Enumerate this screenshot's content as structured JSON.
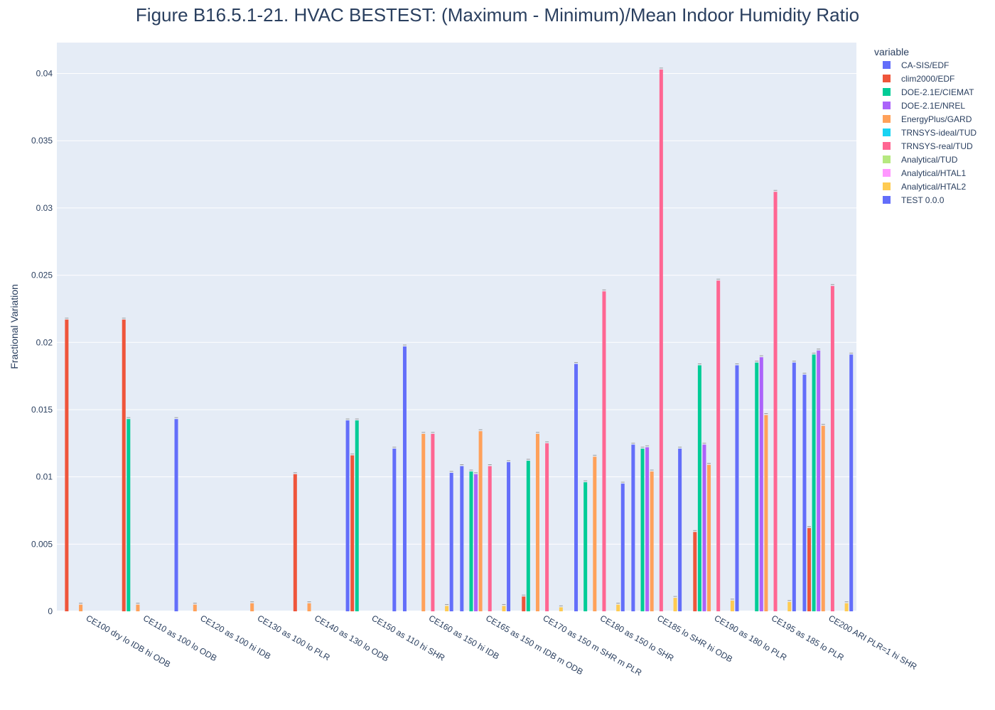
{
  "chart_data": {
    "type": "bar",
    "title": "Figure B16.5.1-21. HVAC BESTEST: (Maximum - Minimum)/Mean Indoor Humidity Ratio",
    "xlabel": "",
    "ylabel": "Fractional Variation",
    "ylim": [
      0,
      0.0423
    ],
    "yticks": [
      0,
      0.005,
      0.01,
      0.015,
      0.02,
      0.025,
      0.03,
      0.035,
      0.04
    ],
    "ytick_labels": [
      "0",
      "0.005",
      "0.01",
      "0.015",
      "0.02",
      "0.025",
      "0.03",
      "0.035",
      "0.04"
    ],
    "grid": true,
    "legend_title": "variable",
    "legend_position": "top-right",
    "categories": [
      "CE100 dry lo IDB hi ODB",
      "CE110 as 100 lo ODB",
      "CE120 as 100 hi IDB",
      "CE130 as 100 lo PLR",
      "CE140 as 130 lo ODB",
      "CE150 as 110 hi SHR",
      "CE160 as 150 hi IDB",
      "CE165 as 150 m IDB m ODB",
      "CE170 as 150 m SHR m PLR",
      "CE180 as 150 lo SHR",
      "CE185 lo SHR hi ODB",
      "CE190 as 180 lo PLR",
      "CE195 as 185 lo PLR",
      "CE200 ARI  PLR=1 hi SHR"
    ],
    "series": [
      {
        "name": "CA-SIS/EDF",
        "color": "#636efa",
        "values": [
          null,
          null,
          0.0143,
          null,
          null,
          0.0142,
          0.0197,
          0.0108,
          null,
          0.0184,
          0.0124,
          null,
          null,
          0.0176
        ]
      },
      {
        "name": "clim2000/EDF",
        "color": "#ef553b",
        "values": [
          0.0217,
          0.0217,
          null,
          null,
          0.0102,
          0.0116,
          null,
          null,
          0.0011,
          null,
          null,
          0.0059,
          null,
          0.0062
        ]
      },
      {
        "name": "DOE-2.1E/CIEMAT",
        "color": "#00cc96",
        "values": [
          null,
          0.0143,
          null,
          null,
          null,
          0.0142,
          null,
          0.0104,
          0.0112,
          0.0096,
          0.0121,
          0.0183,
          0.0185,
          0.0191
        ]
      },
      {
        "name": "DOE-2.1E/NREL",
        "color": "#ab63fa",
        "values": [
          null,
          null,
          null,
          null,
          null,
          null,
          null,
          0.0102,
          null,
          null,
          0.0122,
          0.0124,
          0.0189,
          0.0194
        ]
      },
      {
        "name": "EnergyPlus/GARD",
        "color": "#ffa15a",
        "values": [
          0.0005,
          0.0005,
          0.0005,
          0.0006,
          0.0006,
          null,
          0.0132,
          0.0134,
          0.0132,
          0.0115,
          0.0104,
          0.0109,
          0.0146,
          0.0138
        ]
      },
      {
        "name": "TRNSYS-ideal/TUD",
        "color": "#19d3f3",
        "values": [
          null,
          null,
          null,
          null,
          null,
          null,
          null,
          null,
          null,
          null,
          null,
          null,
          null,
          null
        ]
      },
      {
        "name": "TRNSYS-real/TUD",
        "color": "#ff6692",
        "values": [
          null,
          null,
          null,
          null,
          null,
          null,
          0.0132,
          0.0108,
          0.0125,
          0.0238,
          0.0403,
          0.0246,
          0.0312,
          0.0242
        ]
      },
      {
        "name": "Analytical/TUD",
        "color": "#b6e880",
        "values": [
          null,
          null,
          null,
          null,
          null,
          null,
          null,
          null,
          null,
          null,
          null,
          null,
          null,
          null
        ]
      },
      {
        "name": "Analytical/HTAL1",
        "color": "#ff97ff",
        "values": [
          null,
          null,
          null,
          null,
          null,
          null,
          null,
          null,
          null,
          null,
          null,
          null,
          null,
          null
        ]
      },
      {
        "name": "Analytical/HTAL2",
        "color": "#fecb52",
        "values": [
          null,
          null,
          null,
          null,
          null,
          null,
          0.0004,
          0.0004,
          0.0003,
          0.0005,
          0.001,
          0.0008,
          0.0007,
          0.0006
        ]
      },
      {
        "name": "TEST 0.0.0",
        "color": "#636efa",
        "values": [
          null,
          null,
          null,
          null,
          null,
          0.0121,
          0.0103,
          0.0111,
          null,
          0.0095,
          0.0121,
          0.0183,
          0.0185,
          0.0191
        ]
      }
    ]
  }
}
